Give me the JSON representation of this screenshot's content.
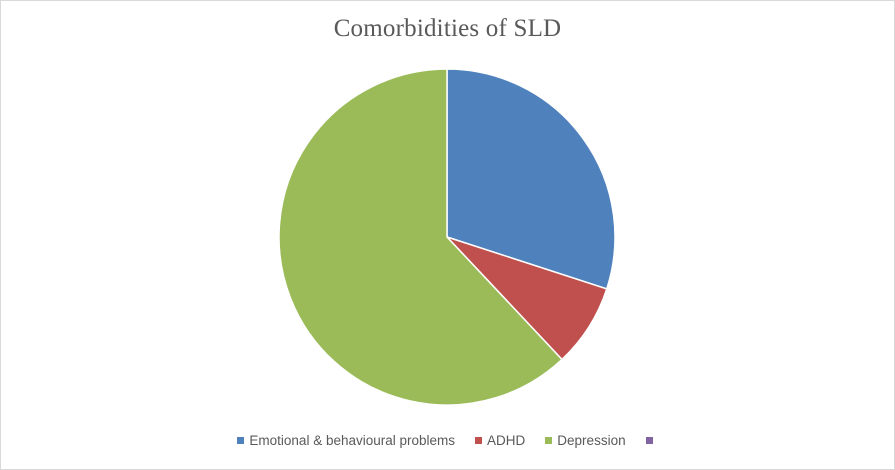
{
  "chart_data": {
    "type": "pie",
    "title": "Comorbidities of SLD",
    "categories": [
      "Emotional & behavioural problems",
      "ADHD",
      "Depression",
      ""
    ],
    "values": [
      30,
      8,
      62,
      0
    ],
    "colors": [
      "#4F81BD",
      "#C0504D",
      "#9BBB59",
      "#8064A2"
    ],
    "legend_position": "bottom"
  }
}
